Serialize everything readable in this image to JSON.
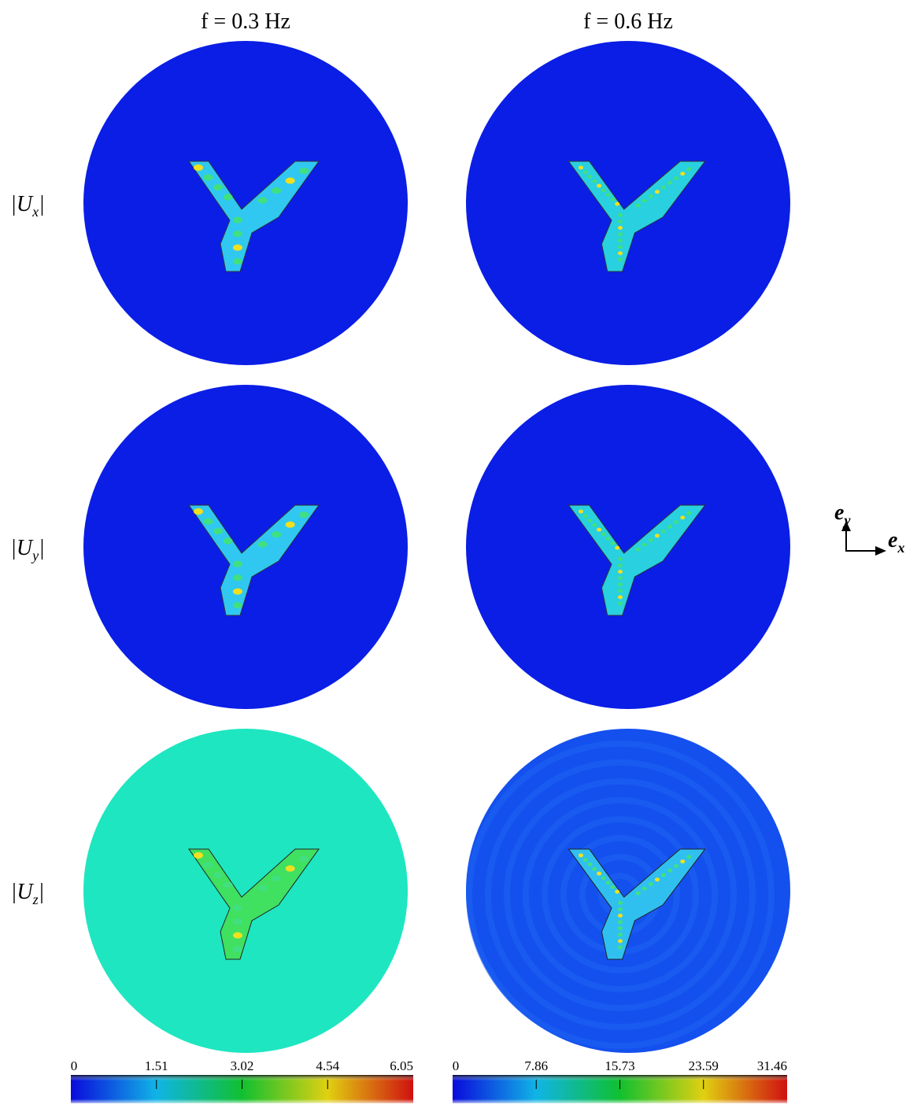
{
  "column_titles": [
    "f = 0.3 Hz",
    "f = 0.6 Hz"
  ],
  "row_labels": [
    {
      "main": "|U",
      "sub": "x",
      "end": "|"
    },
    {
      "main": "|U",
      "sub": "y",
      "end": "|"
    },
    {
      "main": "|U",
      "sub": "z",
      "end": "|"
    }
  ],
  "axes": {
    "vertical": {
      "main": "e",
      "sub": "y"
    },
    "horizontal": {
      "main": "e",
      "sub": "x"
    }
  },
  "colorbars": [
    {
      "ticks": [
        "0",
        "1.51",
        "3.02",
        "4.54",
        "6.05"
      ]
    },
    {
      "ticks": [
        "0",
        "7.86",
        "15.73",
        "23.59",
        "31.46"
      ]
    }
  ]
}
